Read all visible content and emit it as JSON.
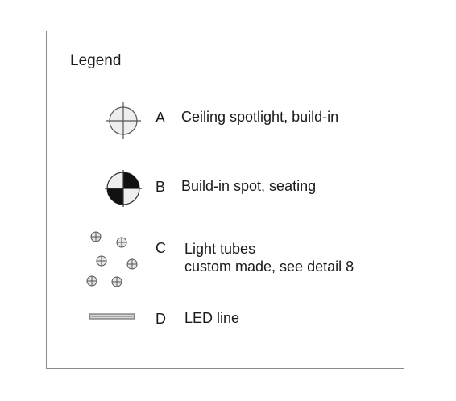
{
  "legend": {
    "title": "Legend",
    "items": [
      {
        "letter": "A",
        "lines": [
          "Ceiling spotlight, build-in"
        ],
        "icon": "ceiling-spotlight-icon"
      },
      {
        "letter": "B",
        "lines": [
          "Build-in spot, seating"
        ],
        "icon": "seating-spot-icon"
      },
      {
        "letter": "C",
        "lines": [
          "Light tubes",
          "custom made, see detail 8"
        ],
        "icon": "light-tubes-icon"
      },
      {
        "letter": "D",
        "lines": [
          "LED line"
        ],
        "icon": "led-line-icon"
      }
    ]
  },
  "colors": {
    "border": "#8a8a8a",
    "symbol_stroke": "#555555",
    "symbol_fill_light": "#eeeeee",
    "symbol_fill_dark": "#111111",
    "text": "#1a1a1a"
  }
}
